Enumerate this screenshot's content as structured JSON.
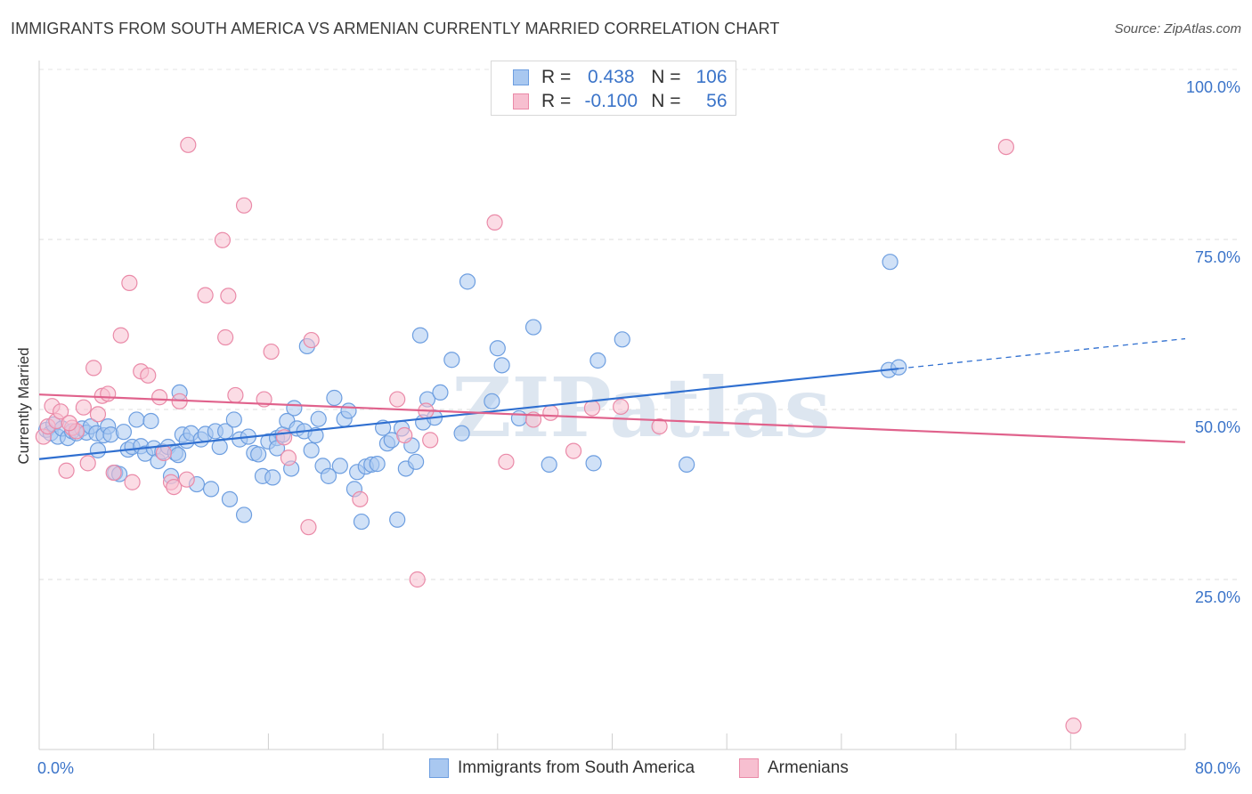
{
  "title": "IMMIGRANTS FROM SOUTH AMERICA VS ARMENIAN CURRENTLY MARRIED CORRELATION CHART",
  "source": "Source: ZipAtlas.com",
  "watermark": "ZIPatlas",
  "legend": {
    "rows": [
      {
        "r_label": "R =",
        "r_value": "0.438",
        "n_label": "N =",
        "n_value": "106",
        "color": "#a9c8f0",
        "border": "#6d9ee0"
      },
      {
        "r_label": "R =",
        "r_value": "-0.100",
        "n_label": "N =",
        "n_value": "56",
        "color": "#f7bfd0",
        "border": "#ea8aa8"
      }
    ]
  },
  "bottom_legend": [
    {
      "label": "Immigrants from South America",
      "color": "#a9c8f0",
      "border": "#6d9ee0"
    },
    {
      "label": "Armenians",
      "color": "#f7bfd0",
      "border": "#ea8aa8"
    }
  ],
  "chart_data": {
    "type": "scatter",
    "title": "IMMIGRANTS FROM SOUTH AMERICA VS ARMENIAN CURRENTLY MARRIED CORRELATION CHART",
    "xlabel": "",
    "ylabel": "Currently Married",
    "xlim": [
      0,
      80
    ],
    "ylim": [
      0,
      100
    ],
    "x_tick_labels": [
      "0.0%",
      "80.0%"
    ],
    "y_ticks": [
      25,
      50,
      75,
      100
    ],
    "y_tick_labels": [
      "25.0%",
      "50.0%",
      "75.0%",
      "100.0%"
    ],
    "grid": true,
    "series": [
      {
        "name": "Immigrants from South America",
        "color": "#6d9ee0",
        "fill": "#a9c8f0",
        "trend": {
          "x": [
            0,
            60
          ],
          "y": [
            42.7,
            56.0
          ],
          "dashed_to": [
            80,
            60.4
          ],
          "color": "#2f6fd0"
        },
        "points": [
          [
            0.5,
            47.0
          ],
          [
            0.8,
            46.5
          ],
          [
            1.0,
            47.8
          ],
          [
            1.3,
            46.0
          ],
          [
            1.6,
            47.2
          ],
          [
            2.0,
            45.8
          ],
          [
            2.3,
            46.8
          ],
          [
            2.6,
            46.5
          ],
          [
            3.0,
            47.2
          ],
          [
            3.3,
            46.6
          ],
          [
            3.6,
            47.5
          ],
          [
            4.0,
            46.5
          ],
          [
            4.1,
            44.0
          ],
          [
            4.5,
            46.2
          ],
          [
            4.8,
            47.5
          ],
          [
            5.0,
            46.3
          ],
          [
            5.3,
            40.7
          ],
          [
            5.6,
            40.5
          ],
          [
            5.9,
            46.7
          ],
          [
            6.2,
            44.1
          ],
          [
            6.5,
            44.5
          ],
          [
            6.8,
            48.5
          ],
          [
            7.1,
            44.6
          ],
          [
            7.4,
            43.5
          ],
          [
            7.8,
            48.3
          ],
          [
            8.0,
            44.3
          ],
          [
            8.3,
            42.4
          ],
          [
            8.6,
            43.8
          ],
          [
            9.0,
            44.5
          ],
          [
            9.2,
            40.2
          ],
          [
            9.5,
            43.6
          ],
          [
            9.8,
            52.5
          ],
          [
            10.0,
            46.3
          ],
          [
            10.3,
            45.4
          ],
          [
            10.6,
            46.5
          ],
          [
            11.0,
            39.0
          ],
          [
            11.3,
            45.6
          ],
          [
            11.6,
            46.4
          ],
          [
            12.0,
            38.3
          ],
          [
            12.3,
            46.8
          ],
          [
            12.6,
            44.5
          ],
          [
            13.0,
            46.8
          ],
          [
            13.3,
            36.8
          ],
          [
            13.6,
            48.5
          ],
          [
            14.0,
            45.6
          ],
          [
            14.3,
            34.5
          ],
          [
            14.6,
            46.0
          ],
          [
            15.0,
            43.6
          ],
          [
            15.3,
            43.4
          ],
          [
            15.6,
            40.2
          ],
          [
            16.0,
            45.3
          ],
          [
            16.3,
            40.0
          ],
          [
            16.6,
            45.8
          ],
          [
            17.0,
            46.3
          ],
          [
            17.3,
            48.3
          ],
          [
            17.6,
            41.3
          ],
          [
            17.8,
            50.2
          ],
          [
            18.0,
            47.2
          ],
          [
            18.5,
            46.8
          ],
          [
            18.7,
            59.3
          ],
          [
            19.0,
            44.0
          ],
          [
            19.5,
            48.6
          ],
          [
            19.8,
            41.7
          ],
          [
            20.2,
            40.2
          ],
          [
            20.6,
            51.7
          ],
          [
            21.0,
            41.7
          ],
          [
            21.3,
            48.6
          ],
          [
            21.6,
            49.8
          ],
          [
            22.0,
            38.3
          ],
          [
            22.2,
            40.8
          ],
          [
            22.5,
            33.5
          ],
          [
            22.8,
            41.6
          ],
          [
            23.2,
            41.9
          ],
          [
            23.6,
            42.0
          ],
          [
            24.0,
            47.3
          ],
          [
            24.3,
            45.0
          ],
          [
            24.6,
            45.5
          ],
          [
            25.0,
            33.8
          ],
          [
            25.3,
            47.2
          ],
          [
            25.6,
            41.3
          ],
          [
            26.0,
            44.7
          ],
          [
            26.3,
            42.3
          ],
          [
            26.6,
            60.9
          ],
          [
            26.8,
            48.1
          ],
          [
            27.1,
            51.5
          ],
          [
            27.6,
            48.8
          ],
          [
            28.0,
            52.5
          ],
          [
            28.8,
            57.3
          ],
          [
            29.5,
            46.5
          ],
          [
            29.9,
            68.8
          ],
          [
            31.6,
            51.2
          ],
          [
            32.0,
            59.0
          ],
          [
            32.3,
            56.5
          ],
          [
            33.5,
            48.7
          ],
          [
            34.5,
            62.1
          ],
          [
            35.6,
            41.9
          ],
          [
            38.7,
            42.1
          ],
          [
            39.0,
            57.2
          ],
          [
            40.7,
            60.3
          ],
          [
            45.2,
            41.9
          ],
          [
            59.3,
            55.8
          ],
          [
            60.0,
            56.2
          ],
          [
            59.4,
            71.7
          ],
          [
            16.6,
            44.3
          ],
          [
            19.3,
            46.2
          ],
          [
            9.7,
            43.3
          ]
        ]
      },
      {
        "name": "Armenians",
        "color": "#ea8aa8",
        "fill": "#f7bfd0",
        "trend": {
          "x": [
            0,
            80
          ],
          "y": [
            52.2,
            45.2
          ],
          "color": "#e0628c"
        },
        "points": [
          [
            0.3,
            46.0
          ],
          [
            0.6,
            47.5
          ],
          [
            0.9,
            50.5
          ],
          [
            1.2,
            48.3
          ],
          [
            1.5,
            49.7
          ],
          [
            1.9,
            41.0
          ],
          [
            2.3,
            47.3
          ],
          [
            2.6,
            46.8
          ],
          [
            3.1,
            50.3
          ],
          [
            3.4,
            42.1
          ],
          [
            3.8,
            56.1
          ],
          [
            4.1,
            49.3
          ],
          [
            4.4,
            52.0
          ],
          [
            4.8,
            52.3
          ],
          [
            5.2,
            40.7
          ],
          [
            5.7,
            60.9
          ],
          [
            6.3,
            68.6
          ],
          [
            6.5,
            39.3
          ],
          [
            7.1,
            55.6
          ],
          [
            7.6,
            55.0
          ],
          [
            8.4,
            51.8
          ],
          [
            8.7,
            43.6
          ],
          [
            9.2,
            39.3
          ],
          [
            9.4,
            38.6
          ],
          [
            9.8,
            51.2
          ],
          [
            10.3,
            39.7
          ],
          [
            10.4,
            88.9
          ],
          [
            11.6,
            66.8
          ],
          [
            12.8,
            74.9
          ],
          [
            13.0,
            60.6
          ],
          [
            13.2,
            66.7
          ],
          [
            13.7,
            52.1
          ],
          [
            14.3,
            80.0
          ],
          [
            15.7,
            51.5
          ],
          [
            16.2,
            58.5
          ],
          [
            17.1,
            45.9
          ],
          [
            17.4,
            42.9
          ],
          [
            18.8,
            32.7
          ],
          [
            19.0,
            60.2
          ],
          [
            22.4,
            36.8
          ],
          [
            25.0,
            51.5
          ],
          [
            25.5,
            46.2
          ],
          [
            26.4,
            25.0
          ],
          [
            27.3,
            45.5
          ],
          [
            31.8,
            77.5
          ],
          [
            32.6,
            42.3
          ],
          [
            34.5,
            48.5
          ],
          [
            35.7,
            49.5
          ],
          [
            37.3,
            43.9
          ],
          [
            38.6,
            50.2
          ],
          [
            40.6,
            50.4
          ],
          [
            43.3,
            47.5
          ],
          [
            67.5,
            88.6
          ],
          [
            72.2,
            3.5
          ],
          [
            27.0,
            49.8
          ],
          [
            2.1,
            48.0
          ]
        ]
      }
    ]
  }
}
